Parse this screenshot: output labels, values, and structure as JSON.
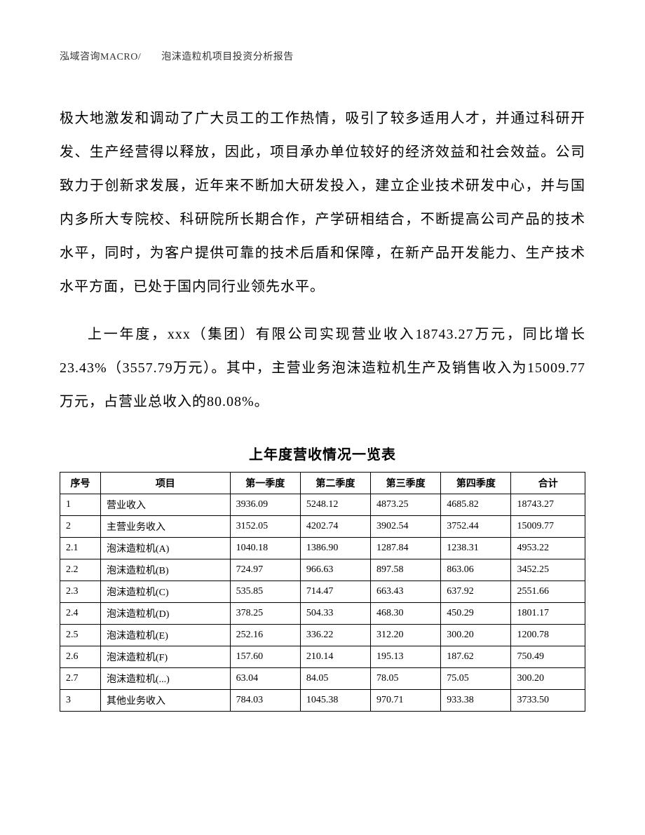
{
  "header": "泓域咨询MACRO/　　泡沫造粒机项目投资分析报告",
  "paragraph1": "极大地激发和调动了广大员工的工作热情，吸引了较多适用人才，并通过科研开发、生产经营得以释放，因此，项目承办单位较好的经济效益和社会效益。公司致力于创新求发展，近年来不断加大研发投入，建立企业技术研发中心，并与国内多所大专院校、科研院所长期合作，产学研相结合，不断提高公司产品的技术水平，同时，为客户提供可靠的技术后盾和保障，在新产品开发能力、生产技术水平方面，已处于国内同行业领先水平。",
  "paragraph2": "上一年度，xxx（集团）有限公司实现营业收入18743.27万元，同比增长23.43%（3557.79万元）。其中，主营业务泡沫造粒机生产及销售收入为15009.77万元，占营业总收入的80.08%。",
  "table": {
    "title": "上年度营收情况一览表",
    "columns": [
      "序号",
      "项目",
      "第一季度",
      "第二季度",
      "第三季度",
      "第四季度",
      "合计"
    ],
    "rows": [
      [
        "1",
        "营业收入",
        "3936.09",
        "5248.12",
        "4873.25",
        "4685.82",
        "18743.27"
      ],
      [
        "2",
        "主营业务收入",
        "3152.05",
        "4202.74",
        "3902.54",
        "3752.44",
        "15009.77"
      ],
      [
        "2.1",
        "泡沫造粒机(A)",
        "1040.18",
        "1386.90",
        "1287.84",
        "1238.31",
        "4953.22"
      ],
      [
        "2.2",
        "泡沫造粒机(B)",
        "724.97",
        "966.63",
        "897.58",
        "863.06",
        "3452.25"
      ],
      [
        "2.3",
        "泡沫造粒机(C)",
        "535.85",
        "714.47",
        "663.43",
        "637.92",
        "2551.66"
      ],
      [
        "2.4",
        "泡沫造粒机(D)",
        "378.25",
        "504.33",
        "468.30",
        "450.29",
        "1801.17"
      ],
      [
        "2.5",
        "泡沫造粒机(E)",
        "252.16",
        "336.22",
        "312.20",
        "300.20",
        "1200.78"
      ],
      [
        "2.6",
        "泡沫造粒机(F)",
        "157.60",
        "210.14",
        "195.13",
        "187.62",
        "750.49"
      ],
      [
        "2.7",
        "泡沫造粒机(...)",
        "63.04",
        "84.05",
        "78.05",
        "75.05",
        "300.20"
      ],
      [
        "3",
        "其他业务收入",
        "784.03",
        "1045.38",
        "970.71",
        "933.38",
        "3733.50"
      ]
    ]
  }
}
